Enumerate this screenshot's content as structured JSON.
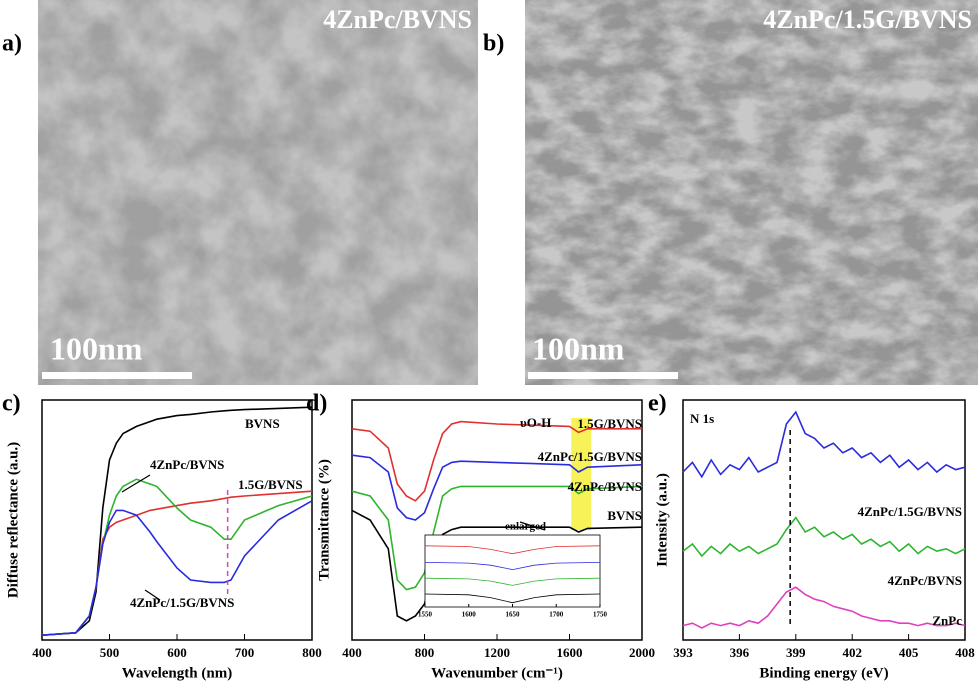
{
  "images": [
    {
      "panel": "a)",
      "label": "4ZnPc/BVNS",
      "scale_bar": "100nm"
    },
    {
      "panel": "b)",
      "label": "4ZnPc/1.5G/BVNS",
      "scale_bar": "100nm"
    }
  ],
  "chart_data": [
    {
      "type": "line",
      "panel": "c)",
      "xlabel": "Wavelength (nm)",
      "ylabel": "Diffuse reflectance (a.u.)",
      "xlim": [
        400,
        800
      ],
      "xticks": [
        400,
        500,
        600,
        700,
        800
      ],
      "ylim": [
        0,
        1
      ],
      "marker_line": 675,
      "x": [
        400,
        450,
        470,
        480,
        490,
        500,
        510,
        520,
        540,
        560,
        570,
        600,
        620,
        650,
        670,
        680,
        700,
        750,
        800
      ],
      "series": [
        {
          "name": "BVNS",
          "color": "#000000",
          "values": [
            0.02,
            0.03,
            0.08,
            0.2,
            0.55,
            0.75,
            0.82,
            0.86,
            0.89,
            0.91,
            0.92,
            0.935,
            0.94,
            0.95,
            0.955,
            0.957,
            0.96,
            0.965,
            0.97
          ]
        },
        {
          "name": "1.5G/BVNS",
          "color": "#e03030",
          "values": [
            0.02,
            0.03,
            0.1,
            0.22,
            0.42,
            0.47,
            0.49,
            0.5,
            0.52,
            0.54,
            0.545,
            0.56,
            0.57,
            0.58,
            0.59,
            0.595,
            0.6,
            0.61,
            0.62
          ]
        },
        {
          "name": "4ZnPc/BVNS",
          "color": "#2db52d",
          "values": [
            0.02,
            0.03,
            0.1,
            0.22,
            0.4,
            0.52,
            0.6,
            0.64,
            0.67,
            0.65,
            0.64,
            0.55,
            0.5,
            0.47,
            0.42,
            0.42,
            0.5,
            0.56,
            0.6
          ]
        },
        {
          "name": "4ZnPc/1.5G/BVNS",
          "color": "#2a2ae0",
          "values": [
            0.02,
            0.03,
            0.1,
            0.22,
            0.4,
            0.49,
            0.54,
            0.54,
            0.52,
            0.45,
            0.41,
            0.3,
            0.25,
            0.24,
            0.24,
            0.25,
            0.35,
            0.5,
            0.58
          ]
        }
      ]
    },
    {
      "type": "line",
      "panel": "d)",
      "xlabel": "Wavenumber (cm⁻¹)",
      "ylabel": "Transmittance (%)",
      "xlim": [
        400,
        2000
      ],
      "xticks": [
        400,
        800,
        1200,
        1600,
        2000
      ],
      "ylim": [
        0,
        1
      ],
      "highlight": [
        1610,
        1720
      ],
      "annotation": "υO-H",
      "x": [
        400,
        500,
        600,
        650,
        700,
        750,
        800,
        850,
        900,
        950,
        1000,
        1200,
        1400,
        1600,
        1650,
        1700,
        2000
      ],
      "series": [
        {
          "name": "1.5G/BVNS",
          "color": "#e03030",
          "values": [
            0.88,
            0.87,
            0.8,
            0.65,
            0.6,
            0.58,
            0.62,
            0.75,
            0.86,
            0.9,
            0.91,
            0.9,
            0.895,
            0.89,
            0.865,
            0.88,
            0.88
          ]
        },
        {
          "name": "4ZnPc/1.5G/BVNS",
          "color": "#2a2ae0",
          "values": [
            0.77,
            0.76,
            0.7,
            0.55,
            0.51,
            0.5,
            0.53,
            0.63,
            0.72,
            0.74,
            0.745,
            0.74,
            0.735,
            0.73,
            0.7,
            0.72,
            0.73
          ]
        },
        {
          "name": "4ZnPc/BVNS",
          "color": "#2db52d",
          "values": [
            0.62,
            0.6,
            0.5,
            0.25,
            0.21,
            0.22,
            0.28,
            0.45,
            0.6,
            0.63,
            0.64,
            0.64,
            0.64,
            0.64,
            0.61,
            0.63,
            0.64
          ]
        },
        {
          "name": "BVNS",
          "color": "#000000",
          "values": [
            0.54,
            0.5,
            0.38,
            0.1,
            0.08,
            0.1,
            0.15,
            0.3,
            0.44,
            0.46,
            0.47,
            0.47,
            0.47,
            0.47,
            0.45,
            0.465,
            0.47
          ]
        }
      ]
    },
    {
      "type": "line",
      "annotation": "enlarged",
      "xlim": [
        1550,
        1750
      ],
      "xticks": [
        1550,
        1600,
        1650,
        1700,
        1750
      ],
      "ylim": [
        0,
        1
      ],
      "x": [
        1550,
        1600,
        1625,
        1650,
        1675,
        1700,
        1750
      ],
      "series": [
        {
          "color": "#e03030",
          "values": [
            0.85,
            0.84,
            0.8,
            0.74,
            0.8,
            0.84,
            0.85
          ]
        },
        {
          "color": "#2a2ae0",
          "values": [
            0.62,
            0.61,
            0.58,
            0.52,
            0.58,
            0.61,
            0.62
          ]
        },
        {
          "color": "#2db52d",
          "values": [
            0.4,
            0.39,
            0.36,
            0.3,
            0.36,
            0.39,
            0.4
          ]
        },
        {
          "color": "#000000",
          "values": [
            0.18,
            0.17,
            0.13,
            0.06,
            0.13,
            0.17,
            0.18
          ]
        }
      ]
    },
    {
      "type": "line",
      "panel": "e)",
      "xlabel": "Binding energy (eV)",
      "ylabel": "Intensity (a.u.)",
      "xlim": [
        393,
        408
      ],
      "xticks": [
        393,
        396,
        399,
        402,
        405,
        408
      ],
      "ylim": [
        0,
        1
      ],
      "annotation": "N 1s",
      "marker_line": 398.7,
      "x": [
        393,
        393.5,
        394,
        394.5,
        395,
        395.5,
        396,
        396.5,
        397,
        397.5,
        398,
        398.5,
        399,
        399.5,
        400,
        400.5,
        401,
        401.5,
        402,
        402.5,
        403,
        403.5,
        404,
        404.5,
        405,
        405.5,
        406,
        406.5,
        407,
        407.5,
        408
      ],
      "series": [
        {
          "name": "4ZnPc/1.5G/BVNS",
          "color": "#2a2ae0",
          "values": [
            0.7,
            0.74,
            0.68,
            0.75,
            0.69,
            0.73,
            0.71,
            0.76,
            0.7,
            0.72,
            0.74,
            0.9,
            0.95,
            0.86,
            0.84,
            0.8,
            0.82,
            0.78,
            0.8,
            0.76,
            0.78,
            0.74,
            0.77,
            0.72,
            0.75,
            0.71,
            0.74,
            0.7,
            0.73,
            0.71,
            0.72
          ]
        },
        {
          "name": "4ZnPc/BVNS",
          "color": "#2db52d",
          "values": [
            0.37,
            0.4,
            0.35,
            0.39,
            0.36,
            0.4,
            0.37,
            0.39,
            0.36,
            0.38,
            0.4,
            0.46,
            0.51,
            0.45,
            0.47,
            0.43,
            0.45,
            0.42,
            0.44,
            0.4,
            0.42,
            0.39,
            0.41,
            0.37,
            0.4,
            0.36,
            0.39,
            0.37,
            0.38,
            0.36,
            0.38
          ]
        },
        {
          "name": "ZnPc",
          "color": "#e040c0",
          "values": [
            0.06,
            0.07,
            0.05,
            0.07,
            0.06,
            0.07,
            0.06,
            0.08,
            0.07,
            0.1,
            0.15,
            0.2,
            0.22,
            0.19,
            0.17,
            0.16,
            0.14,
            0.13,
            0.12,
            0.1,
            0.09,
            0.08,
            0.08,
            0.07,
            0.07,
            0.06,
            0.07,
            0.06,
            0.06,
            0.07,
            0.06
          ]
        }
      ]
    }
  ]
}
